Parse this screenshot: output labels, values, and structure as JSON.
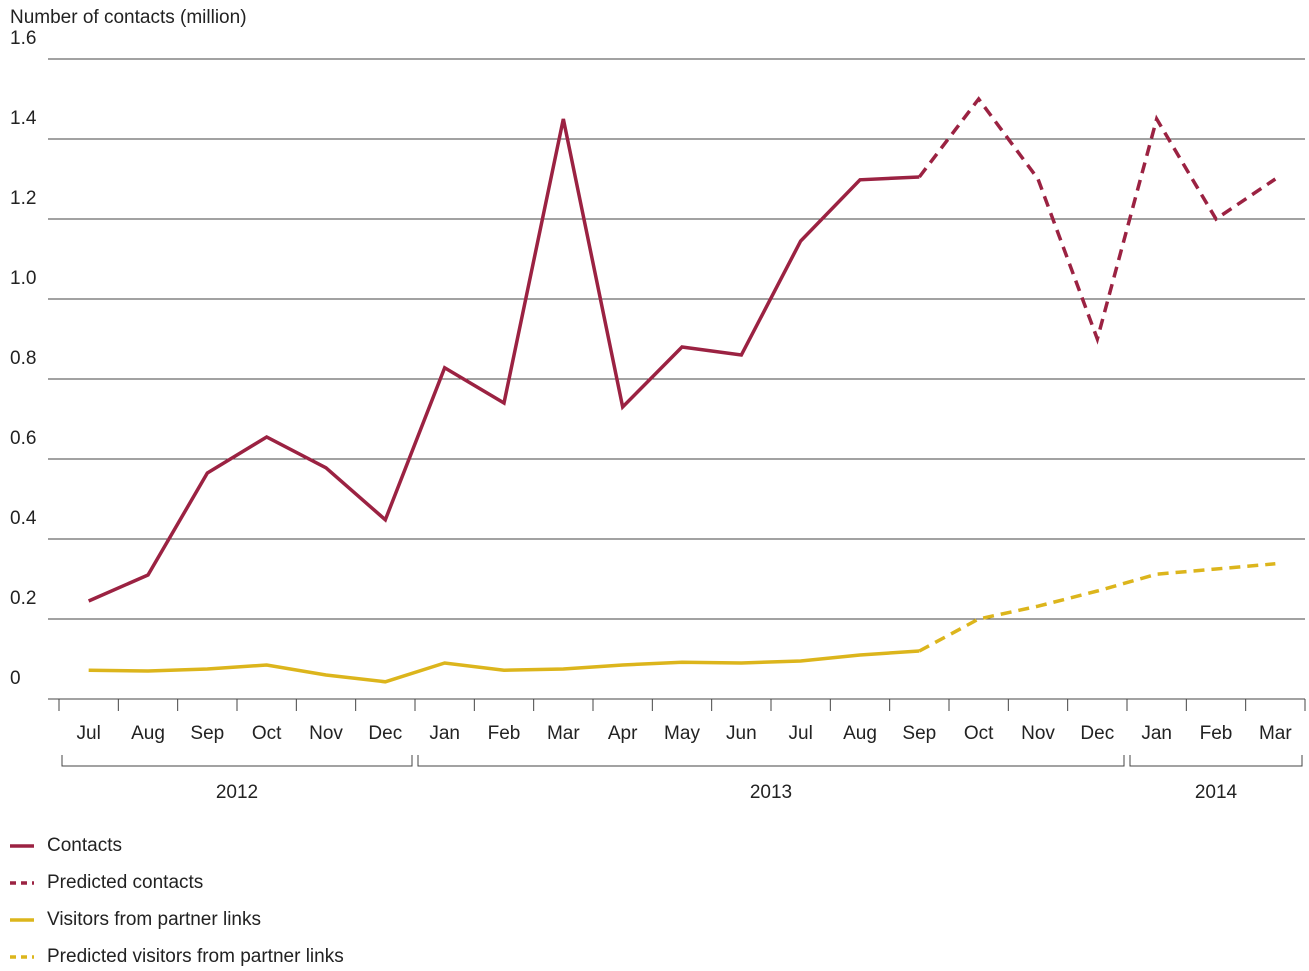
{
  "chart_data": {
    "type": "line",
    "y_label": "Number of contacts (million)",
    "categories": [
      "Jul",
      "Aug",
      "Sep",
      "Oct",
      "Nov",
      "Dec",
      "Jan",
      "Feb",
      "Mar",
      "Apr",
      "May",
      "Jun",
      "Jul",
      "Aug",
      "Sep",
      "Oct",
      "Nov",
      "Dec",
      "Jan",
      "Feb",
      "Mar"
    ],
    "x_groups": [
      {
        "label": "2012",
        "span": 6
      },
      {
        "label": "2013",
        "span": 12
      },
      {
        "label": "2014",
        "span": 3
      }
    ],
    "series": [
      {
        "name": "Contacts",
        "color": "#9b2242",
        "dashed": false,
        "values": [
          0.245,
          0.31,
          0.565,
          0.655,
          0.578,
          0.448,
          0.828,
          0.74,
          1.45,
          0.73,
          0.88,
          0.86,
          1.145,
          1.298,
          1.305,
          null,
          null,
          null,
          null,
          null,
          null
        ]
      },
      {
        "name": "Predicted contacts",
        "color": "#9b2242",
        "dashed": true,
        "values": [
          null,
          null,
          null,
          null,
          null,
          null,
          null,
          null,
          null,
          null,
          null,
          null,
          null,
          null,
          1.305,
          1.5,
          1.3,
          0.9,
          1.45,
          1.2,
          1.3
        ]
      },
      {
        "name": "Visitors from partner links",
        "color": "#dcb51c",
        "dashed": false,
        "values": [
          0.072,
          0.07,
          0.075,
          0.085,
          0.06,
          0.043,
          0.09,
          0.072,
          0.075,
          0.085,
          0.092,
          0.09,
          0.095,
          0.11,
          0.12,
          null,
          null,
          null,
          null,
          null,
          null
        ]
      },
      {
        "name": "Predicted visitors from partner links",
        "color": "#dcb51c",
        "dashed": true,
        "values": [
          null,
          null,
          null,
          null,
          null,
          null,
          null,
          null,
          null,
          null,
          null,
          null,
          null,
          null,
          0.12,
          0.2,
          0.232,
          0.27,
          0.312,
          0.325,
          0.338
        ]
      }
    ],
    "ylim": [
      0,
      1.6
    ],
    "yticks": [
      0,
      0.2,
      0.4,
      0.6,
      0.8,
      {
        "value": 1,
        "label": "1.0"
      },
      1.2,
      1.4,
      1.6
    ],
    "grid": true
  }
}
